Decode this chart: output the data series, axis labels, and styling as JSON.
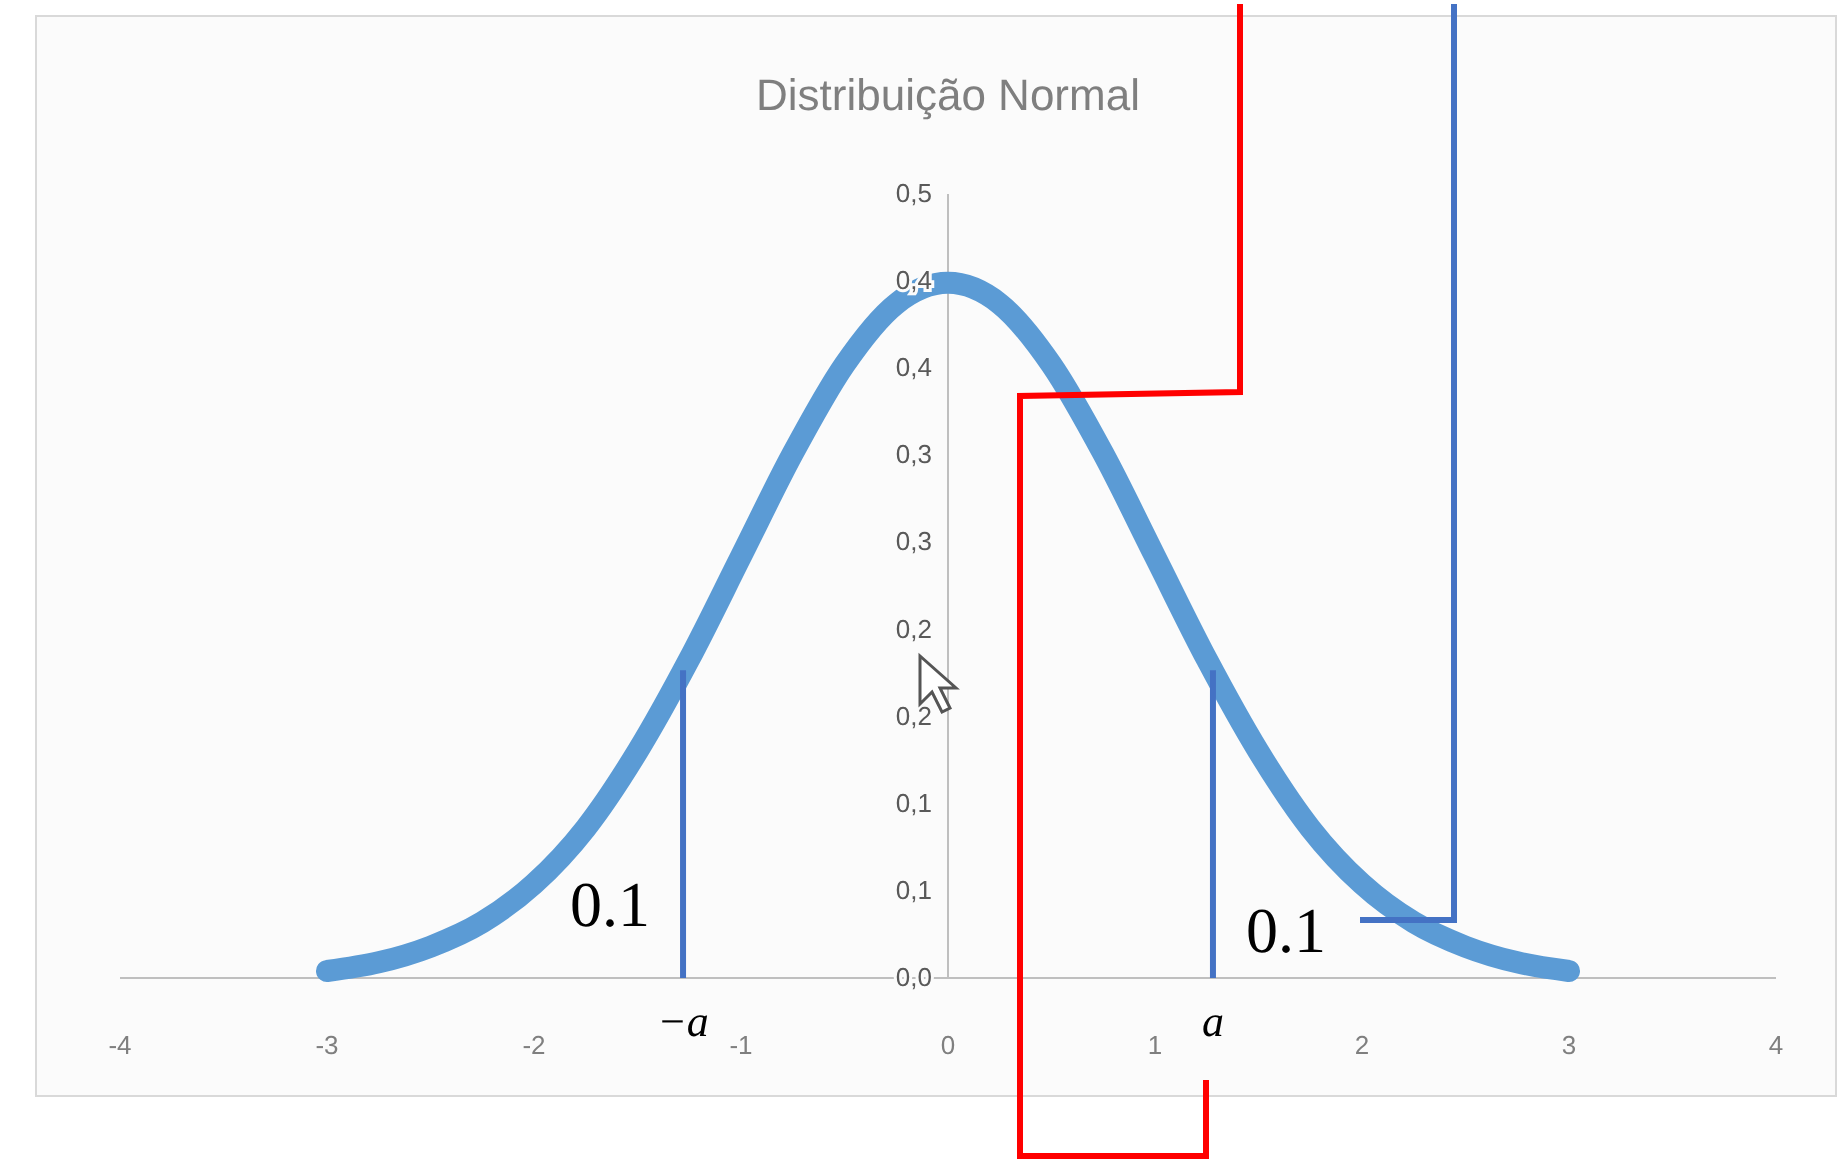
{
  "chart_data": {
    "type": "line",
    "title": "Distribuição Normal",
    "x": [
      -3,
      -2.75,
      -2.5,
      -2.25,
      -2,
      -1.75,
      -1.5,
      -1.25,
      -1,
      -0.75,
      -0.5,
      -0.25,
      0,
      0.25,
      0.5,
      0.75,
      1,
      1.25,
      1.5,
      1.75,
      2,
      2.25,
      2.5,
      2.75,
      3
    ],
    "series": [
      {
        "color": "#5b9bd5",
        "values": [
          0.004,
          0.009,
          0.018,
          0.032,
          0.054,
          0.086,
          0.13,
          0.183,
          0.242,
          0.301,
          0.352,
          0.387,
          0.399,
          0.387,
          0.352,
          0.301,
          0.242,
          0.183,
          0.13,
          0.086,
          0.054,
          0.032,
          0.018,
          0.009,
          0.004
        ]
      }
    ],
    "xlim": [
      -4,
      4
    ],
    "xticks": [
      -4,
      -3,
      -2,
      -1,
      0,
      1,
      2,
      3,
      4
    ],
    "ylim": [
      0,
      0.45
    ],
    "yticks": [
      {
        "value": 0,
        "label": "0,0"
      },
      {
        "value": 0.05,
        "label": "0,1"
      },
      {
        "value": 0.1,
        "label": "0,1"
      },
      {
        "value": 0.15,
        "label": "0,2"
      },
      {
        "value": 0.2,
        "label": "0,2"
      },
      {
        "value": 0.25,
        "label": "0,3"
      },
      {
        "value": 0.3,
        "label": "0,3"
      },
      {
        "value": 0.35,
        "label": "0,4"
      },
      {
        "value": 0.4,
        "label": "0,4"
      },
      {
        "value": 0.45,
        "label": "0,5"
      }
    ],
    "ref_lines": [
      {
        "axis": "x",
        "value": -1.28,
        "label": "−a",
        "color": "#4472c4"
      },
      {
        "axis": "x",
        "value": 1.28,
        "label": "a",
        "color": "#4472c4"
      }
    ],
    "annotations": [
      "0.1",
      "0.1"
    ],
    "line_style": "solid",
    "grid": false
  }
}
